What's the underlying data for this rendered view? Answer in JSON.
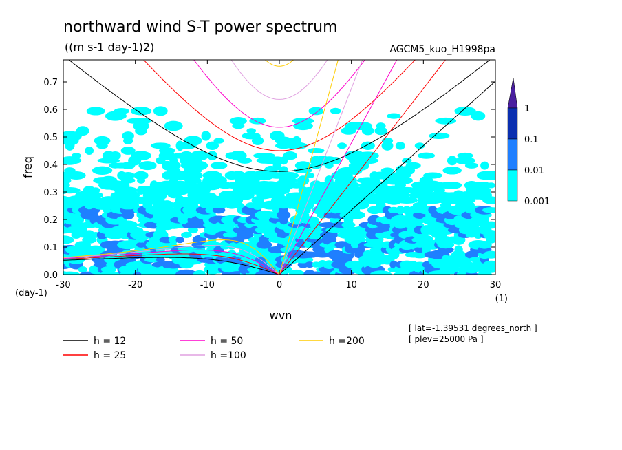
{
  "header": {
    "title": "northward wind S-T power spectrum",
    "units": "((m s-1 day-1)2)",
    "run_name": "AGCM5_kuo_H1998pa"
  },
  "chart_data": {
    "type": "heatmap",
    "title": "northward wind S-T power spectrum",
    "subtitle": "((m s-1 day-1)2)",
    "xlabel": "wvn",
    "ylabel": "freq",
    "x_unit": "(1)",
    "y_unit": "(day-1)",
    "xlim": [
      -30,
      30
    ],
    "ylim": [
      0,
      0.78
    ],
    "x_ticks": [
      -30,
      -20,
      -10,
      0,
      10,
      20,
      30
    ],
    "x_tick_labels": [
      "-30",
      "-20",
      "-10",
      "0",
      "10",
      "20",
      "30"
    ],
    "y_ticks": [
      0.0,
      0.1,
      0.2,
      0.3,
      0.4,
      0.5,
      0.6,
      0.7
    ],
    "y_tick_labels": [
      "0.0",
      "0.1",
      "0.2",
      "0.3",
      "0.4",
      "0.5",
      "0.6",
      "0.7"
    ],
    "colorbar": {
      "levels": [
        "0.001",
        "0.01",
        "0.1",
        "1"
      ],
      "colors": [
        "#00ffff",
        "#1f7fff",
        "#0a2fb0",
        "#4a1fa0"
      ]
    },
    "shading_regions_description": "power 0.001-0.01 cyan patches for freq < 0.6, denser below 0.35; 0.01-0.1 blue patches mostly below 0.25",
    "dispersion_curves": [
      {
        "name": "h = 12",
        "h": 12,
        "color": "#000000"
      },
      {
        "name": "h = 25",
        "h": 25,
        "color": "#ff0000"
      },
      {
        "name": "h = 50",
        "h": 50,
        "color": "#ff00cc"
      },
      {
        "name": "h =100",
        "h": 100,
        "color": "#e0a0e0"
      },
      {
        "name": "h =200",
        "h": 200,
        "color": "#ffcc00"
      }
    ]
  },
  "legend": {
    "items": [
      {
        "label": "h = 12",
        "color": "#000000"
      },
      {
        "label": "h = 25",
        "color": "#ff0000"
      },
      {
        "label": "h = 50",
        "color": "#ff00cc"
      },
      {
        "label": "h =100",
        "color": "#e0a0e0"
      },
      {
        "label": "h =200",
        "color": "#ffcc00"
      }
    ]
  },
  "notes": {
    "lat": "[ lat=-1.39531 degrees_north ]",
    "plev": "[ plev=25000 Pa ]"
  }
}
